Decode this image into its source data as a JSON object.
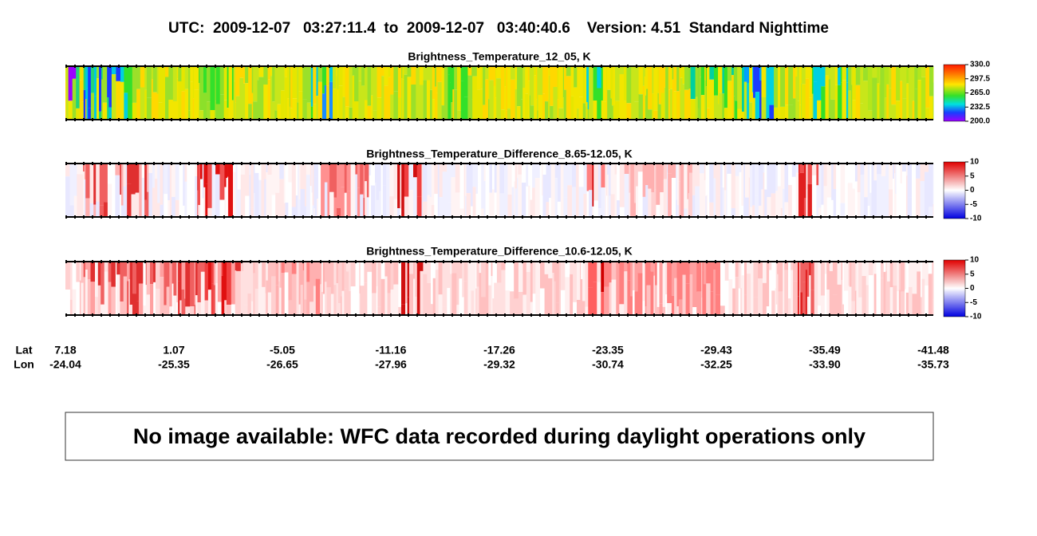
{
  "header": {
    "title": "UTC:  2009-12-07   03:27:11.4  to  2009-12-07   03:40:40.6    Version: 4.51  Standard Nighttime"
  },
  "panels": [
    {
      "title": "Brightness_Temperature_12_05, K",
      "colorbar": [
        "330.0",
        "297.5",
        "265.0",
        "232.5",
        "200.0"
      ]
    },
    {
      "title": "Brightness_Temperature_Difference_8.65-12.05, K",
      "colorbar": [
        "10",
        "5",
        "0",
        "-5",
        "-10"
      ]
    },
    {
      "title": "Brightness_Temperature_Difference_10.6-12.05, K",
      "colorbar": [
        "10",
        "5",
        "0",
        "-5",
        "-10"
      ]
    }
  ],
  "axis": {
    "lat_label": "Lat",
    "lon_label": "Lon",
    "lat": [
      "7.18",
      "1.07",
      "-5.05",
      "-11.16",
      "-17.26",
      "-23.35",
      "-29.43",
      "-35.49",
      "-41.48"
    ],
    "lon": [
      "-24.04",
      "-25.35",
      "-26.65",
      "-27.96",
      "-29.32",
      "-30.74",
      "-32.25",
      "-33.90",
      "-35.73"
    ]
  },
  "message": "No image available: WFC data recorded during daylight operations only"
}
